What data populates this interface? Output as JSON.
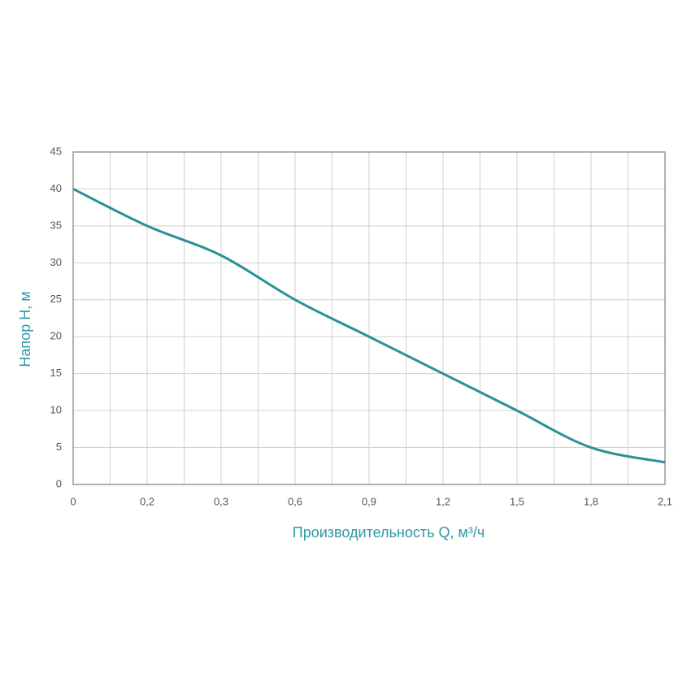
{
  "chart_data": {
    "type": "line",
    "x_label": "Производительность Q, м³/ч",
    "y_label": "Напор Н, м",
    "categories": [
      "0",
      "0,2",
      "0,3",
      "0,6",
      "0,9",
      "1,2",
      "1,5",
      "1,8",
      "2,1"
    ],
    "series": [
      {
        "name": "H",
        "color": "#2a9196",
        "values": [
          40,
          35,
          31,
          25,
          20,
          15,
          10,
          5,
          3
        ]
      }
    ],
    "ylim": [
      0,
      45
    ],
    "yticks": [
      0,
      5,
      10,
      15,
      20,
      25,
      30,
      35,
      40,
      45
    ],
    "grid": true,
    "label_color": "#2a9aa5"
  }
}
